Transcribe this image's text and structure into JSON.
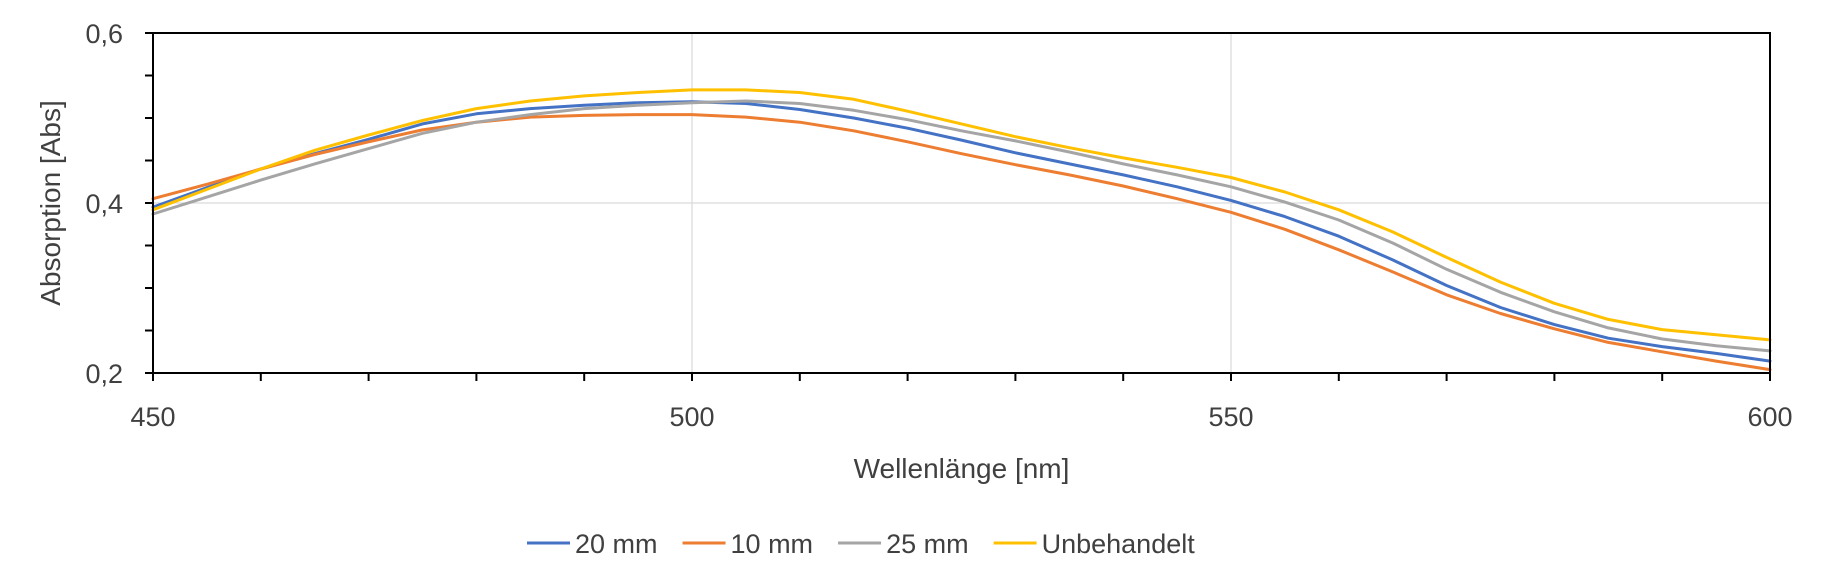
{
  "chart_data": {
    "type": "line",
    "xlabel": "Wellenlänge [nm]",
    "ylabel": "Absorption [Abs]",
    "xlim": [
      450,
      600
    ],
    "ylim": [
      0.2,
      0.6
    ],
    "x_ticks": [
      "450",
      "500",
      "550",
      "600"
    ],
    "y_ticks": [
      "0,2",
      "0,4",
      "0,6"
    ],
    "grid": true,
    "legend": "bottom",
    "x": [
      450,
      455,
      460,
      465,
      470,
      475,
      480,
      485,
      490,
      495,
      500,
      505,
      510,
      515,
      520,
      525,
      530,
      535,
      540,
      545,
      550,
      555,
      560,
      565,
      570,
      575,
      580,
      585,
      590,
      595,
      600
    ],
    "series": [
      {
        "name": "20 mm",
        "color": "#4472c4",
        "values": [
          0.395,
          0.418,
          0.44,
          0.458,
          0.475,
          0.493,
          0.505,
          0.511,
          0.515,
          0.518,
          0.519,
          0.517,
          0.51,
          0.5,
          0.488,
          0.474,
          0.459,
          0.446,
          0.433,
          0.419,
          0.403,
          0.384,
          0.361,
          0.333,
          0.303,
          0.277,
          0.257,
          0.241,
          0.231,
          0.223,
          0.214
        ]
      },
      {
        "name": "10 mm",
        "color": "#ed7d31",
        "values": [
          0.405,
          0.422,
          0.44,
          0.457,
          0.472,
          0.486,
          0.495,
          0.501,
          0.503,
          0.504,
          0.504,
          0.501,
          0.495,
          0.485,
          0.472,
          0.458,
          0.445,
          0.433,
          0.42,
          0.405,
          0.389,
          0.369,
          0.345,
          0.319,
          0.292,
          0.27,
          0.252,
          0.236,
          0.225,
          0.214,
          0.204
        ]
      },
      {
        "name": "25 mm",
        "color": "#a5a5a5",
        "values": [
          0.387,
          0.407,
          0.427,
          0.446,
          0.464,
          0.482,
          0.495,
          0.504,
          0.511,
          0.515,
          0.518,
          0.52,
          0.517,
          0.509,
          0.498,
          0.485,
          0.473,
          0.46,
          0.446,
          0.433,
          0.419,
          0.401,
          0.38,
          0.353,
          0.322,
          0.295,
          0.272,
          0.253,
          0.24,
          0.232,
          0.226
        ]
      },
      {
        "name": "Unbehandelt",
        "color": "#ffc000",
        "values": [
          0.392,
          0.416,
          0.44,
          0.462,
          0.48,
          0.497,
          0.511,
          0.52,
          0.526,
          0.53,
          0.533,
          0.533,
          0.53,
          0.522,
          0.508,
          0.493,
          0.478,
          0.465,
          0.453,
          0.442,
          0.43,
          0.413,
          0.392,
          0.366,
          0.336,
          0.307,
          0.282,
          0.263,
          0.251,
          0.245,
          0.239
        ]
      }
    ]
  }
}
